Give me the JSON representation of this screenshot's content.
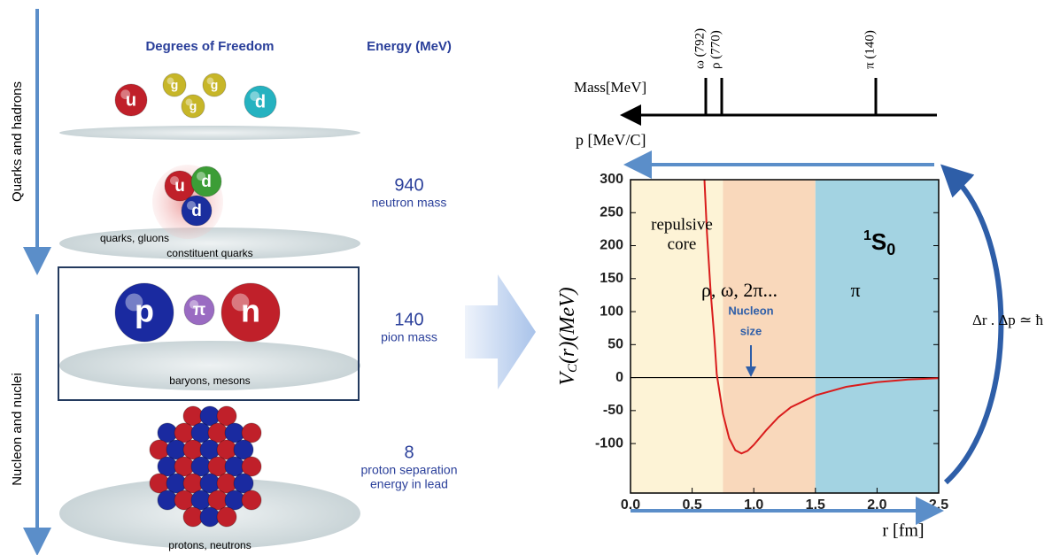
{
  "left_panel": {
    "header": {
      "degrees": "Degrees of Freedom",
      "energy": "Energy (MeV)"
    },
    "side_labels": [
      "Quarks and hadrons",
      "Nucleon and nuclei"
    ],
    "levels": [
      {
        "particles": [
          "u",
          "g",
          "g",
          "g",
          "d"
        ],
        "caption": "quarks, gluons"
      },
      {
        "particles": [
          "u",
          "d",
          "d"
        ],
        "caption": "constituent quarks",
        "energy": 940,
        "energy_note": [
          "neutron mass"
        ]
      },
      {
        "particles": [
          "p",
          "π",
          "n"
        ],
        "caption": "baryons, mesons",
        "energy": 140,
        "energy_note": [
          "pion mass"
        ]
      },
      {
        "caption": "protons, neutrons",
        "energy": 8,
        "energy_note": [
          "proton separation",
          "energy in lead"
        ]
      }
    ]
  },
  "chart_data": {
    "type": "line",
    "x": [
      0.6,
      0.62,
      0.65,
      0.68,
      0.7,
      0.75,
      0.8,
      0.85,
      0.9,
      0.95,
      1.0,
      1.1,
      1.2,
      1.3,
      1.5,
      1.75,
      2.0,
      2.25,
      2.5
    ],
    "values": [
      300,
      220,
      130,
      60,
      5,
      -55,
      -92,
      -110,
      -115,
      -111,
      -102,
      -80,
      -60,
      -45,
      -27,
      -14,
      -7,
      -3,
      -1
    ],
    "color": "#d91c1c",
    "xlim": [
      0,
      2.5
    ],
    "ylim": [
      -175,
      300
    ],
    "xticks": [
      {
        "value": 0,
        "label": "0.0"
      },
      0.5,
      {
        "value": 1,
        "label": "1.0"
      },
      1.5,
      {
        "value": 2,
        "label": "2.0"
      },
      2.5
    ],
    "yticks": [
      300,
      250,
      200,
      150,
      100,
      50,
      0,
      -50,
      -100
    ],
    "x_label": "r [fm]",
    "y_label": [
      "V",
      "C",
      "(r)(MeV)"
    ],
    "regions": [
      {
        "from": 0,
        "to": 0.75,
        "color": "#fdf3d6"
      },
      {
        "from": 0.75,
        "to": 1.5,
        "color": "#f9d8bb"
      },
      {
        "from": 1.5,
        "to": 2.5,
        "color": "#a3d3e2"
      }
    ],
    "annotations": {
      "repulsive_core": [
        "repulsive",
        "core"
      ],
      "exchange": "ρ, ω, 2π...",
      "nucleon_size": [
        "Nucleon",
        "size"
      ],
      "pion": "π",
      "state": [
        "1",
        "S",
        "0"
      ]
    },
    "momentum_label": "p [MeV/C]",
    "mass_label": "Mass[MeV]",
    "mass_ticks": [
      "ω (792)",
      "ρ (770)",
      "π (140)"
    ],
    "uncertainty": "Δr . Δp ≃ ħ"
  }
}
